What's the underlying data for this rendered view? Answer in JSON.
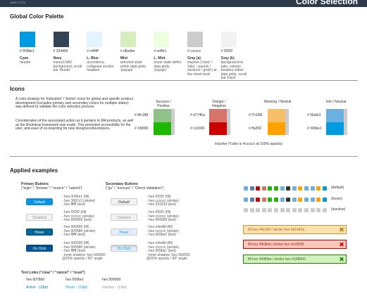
{
  "header": {
    "logo": "ANALYTICS",
    "title": "Color Selection"
  },
  "palette": {
    "title": "Global Color Palette",
    "swatches": [
      {
        "hex": "# 009be1",
        "name": "Cyan",
        "description": "header"
      },
      {
        "hex": "# 334456",
        "name": "Navy",
        "description": "menu/LNAV background, scroll bar 'thumb'"
      },
      {
        "hex": "# e4f4ff",
        "name": "L. Blue",
        "description": "accordions, collapsed section headers"
      },
      {
        "hex": "# d6edbe",
        "name": "Mint",
        "description": "selected state within data grids, 'popups'"
      },
      {
        "hex": "# eeffe1",
        "name": "L. Mint",
        "description": "hover state within data grids, 'popups'"
      },
      {
        "hex": "# cccccc",
        "name": "Gray (a)",
        "description": "inactive ('rows' / 'tabs' / panels / sections / grids') at the sheet level"
      },
      {
        "hex": "# f2f2f2",
        "name": "Gray (b)",
        "description": "background to tabs, column headers within data grids, scroll bar 'track'"
      }
    ]
  },
  "icons": {
    "title": "Icons",
    "paragraphs": [
      "A color strategy for 'indication' / 'Action' icons for global and specific product development (excludes primary and secondary colors for multiple states) was defined to validate the color selection process.",
      "Consideration of the associated action as it pertains to MA products, as well as the Bootstrap framework was made. This promoted accessibility for the user, and ease of on-boarding for new designers/developers."
    ],
    "columns": [
      {
        "label": "Success / Positive",
        "colors": [
          "# 8fc188",
          "# 1fb800"
        ]
      },
      {
        "label": "Danger / Negative",
        "colors": [
          "# d7746a",
          "# cc0000"
        ]
      },
      {
        "label": "Warning / Neutral",
        "colors": [
          "# f7c068",
          "# ffa200"
        ]
      },
      {
        "label": "Info / Neutral",
        "colors": [
          "# 6bafe3",
          "# 009be1"
        ]
      }
    ],
    "inactive_note": "Inactive (*color is #cccccc at 100% opacity)"
  },
  "applied": {
    "title": "Applied examples",
    "primary": {
      "title": "Primary Buttons",
      "subtitle": "(\"login\" / \"browse\" / \"search\" / \"submit\")",
      "buttons": [
        {
          "label": "Default",
          "specs": [
            "- hex 0096e1 (fill)",
            "- hex 3687c2 (stroke)",
            "- hex ffffff (text)"
          ]
        },
        {
          "label": "Disabled",
          "specs": [
            "- hex f2f2f2 (fill)",
            "- hex cccccc (stroke)",
            "- hex 999999 (text)"
          ]
        },
        {
          "label": "Hover",
          "specs": [
            "- hex 006699 (fill)",
            "- hex 005580 (stroke)",
            "- hex ffffff (text)"
          ]
        },
        {
          "label": "On Click",
          "specs": [
            "- hex 005599 (fill)",
            "- hex 005580 (stroke)",
            "- hex ffffff (text)",
            "- inner shadow: hex 000000",
            "@15% opacity / 90° angle"
          ]
        }
      ]
    },
    "secondary": {
      "title": "Secondary Buttons",
      "subtitle": "(\"go\" / \"execute\" / \"Check Validation\")",
      "buttons": [
        {
          "label": "Default",
          "specs": [
            "- hex f2f2f2 (fill)",
            "- hex cccccc (stroke)",
            "- hex 333333 (text)"
          ]
        },
        {
          "label": "Disabled",
          "specs": [
            "- hex f2f2f2 (fill)",
            "- hex cccccc (stroke)",
            "- hex 999999 (text)"
          ]
        },
        {
          "label": "Hover",
          "specs": [
            "- hex e4edfd (fill)",
            "- hex cccccc (stroke)",
            "- hex 009be1 (text)"
          ]
        },
        {
          "label": "On Click",
          "specs": [
            "- hex e4edfd (fill)",
            "- hex cccccc (stroke)",
            "- hex 009be1 (text)",
            "- inner shadow: hex 000000",
            "@15% opacity / 90° angle"
          ]
        }
      ]
    },
    "icon_states": [
      "(default)",
      "(hover)",
      "(inactive)"
    ],
    "alerts": [
      "fill hex #ffe1b0 / stroke hex #d1942a",
      "fill hex #ffc8bd / stroke hex #cc0000",
      "fill hex #d3f0be / stroke hex #168500"
    ],
    "text_links": {
      "title": "Text Links (\"clear\" / \"cancel\" / \"reset\")",
      "items": [
        {
          "hex": "hex 0078b0",
          "label": "Active - (13pt)"
        },
        {
          "hex": "hex 009be1",
          "label": "Hover - (13pt)"
        },
        {
          "hex": "hex 999999",
          "label": "Inactive - (13pt)"
        }
      ]
    }
  }
}
